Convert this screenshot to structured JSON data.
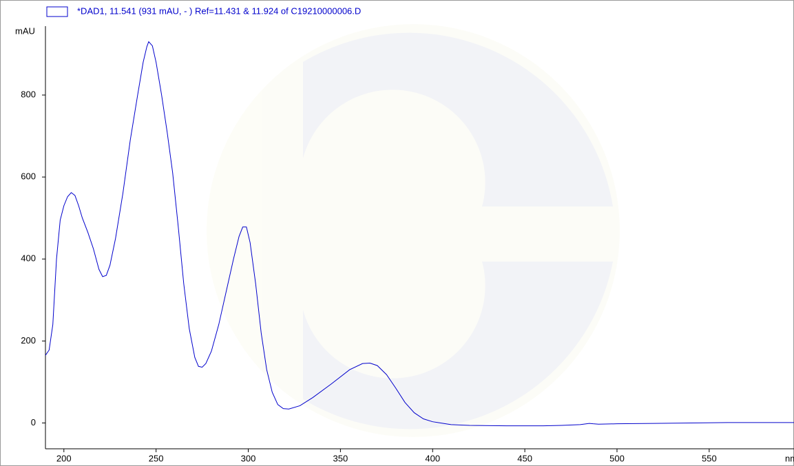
{
  "chart_data": {
    "type": "line",
    "x_label": "nm",
    "y_label": "mAU",
    "xlim": [
      190,
      596
    ],
    "ylim": [
      -63,
      968
    ],
    "xticks": [
      200,
      250,
      300,
      350,
      400,
      450,
      500,
      550
    ],
    "yticks": [
      0,
      200,
      400,
      600,
      800
    ],
    "x": [
      190,
      192,
      194,
      196,
      198,
      200,
      202,
      204,
      206,
      208,
      210,
      213,
      216,
      219,
      221,
      223,
      225,
      228,
      232,
      236,
      240,
      243,
      245,
      246,
      248,
      250,
      253,
      256,
      259,
      262,
      265,
      268,
      271,
      273,
      275,
      277,
      280,
      284,
      288,
      292,
      295,
      297,
      299,
      301,
      304,
      307,
      310,
      313,
      316,
      319,
      322,
      328,
      335,
      345,
      355,
      362,
      366,
      370,
      375,
      380,
      385,
      390,
      395,
      400,
      410,
      420,
      440,
      460,
      470,
      480,
      485,
      487,
      490,
      500,
      520,
      540,
      560,
      596
    ],
    "series": [
      {
        "name": "*DAD1, 11.541 (931 mAU, - ) Ref=11.431 & 11.924 of C19210000006.D",
        "color": "#0000cc",
        "values": [
          165,
          178,
          240,
          400,
          495,
          530,
          552,
          562,
          555,
          530,
          500,
          465,
          425,
          375,
          357,
          360,
          385,
          450,
          560,
          690,
          800,
          880,
          918,
          930,
          920,
          880,
          800,
          710,
          610,
          480,
          340,
          230,
          160,
          138,
          136,
          145,
          175,
          240,
          320,
          400,
          455,
          478,
          478,
          440,
          340,
          220,
          130,
          75,
          45,
          35,
          34,
          42,
          62,
          95,
          130,
          145,
          146,
          140,
          118,
          85,
          50,
          25,
          10,
          3,
          -4,
          -6,
          -7,
          -7,
          -6,
          -4,
          -1,
          -2,
          -3,
          -2,
          -1,
          0,
          1,
          1
        ]
      }
    ]
  }
}
